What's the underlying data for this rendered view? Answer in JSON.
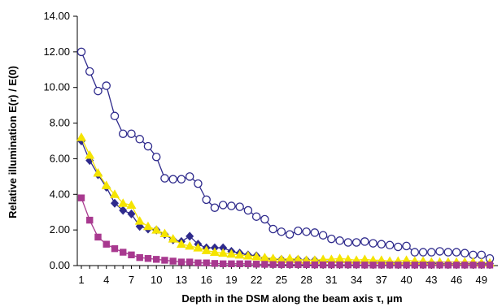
{
  "chart_data": {
    "type": "line",
    "title": "",
    "xlabel": "Depth in the DSM along the beam axis τ, µm",
    "ylabel": "Relative illumination  E(r) / E(0)",
    "ylim": [
      0,
      14
    ],
    "xlim": [
      1,
      50
    ],
    "y_ticks": [
      "0.00",
      "2.00",
      "4.00",
      "6.00",
      "8.00",
      "10.00",
      "12.00",
      "14.00"
    ],
    "x_ticks": [
      "1",
      "4",
      "7",
      "10",
      "13",
      "16",
      "19",
      "22",
      "25",
      "28",
      "31",
      "34",
      "37",
      "40",
      "43",
      "46",
      "49"
    ],
    "grid": false,
    "legend": "none",
    "x": [
      1,
      2,
      3,
      4,
      5,
      6,
      7,
      8,
      9,
      10,
      11,
      12,
      13,
      14,
      15,
      16,
      17,
      18,
      19,
      20,
      21,
      22,
      23,
      24,
      25,
      26,
      27,
      28,
      29,
      30,
      31,
      32,
      33,
      34,
      35,
      36,
      37,
      38,
      39,
      40,
      41,
      42,
      43,
      44,
      45,
      46,
      47,
      48,
      49,
      50
    ],
    "series": [
      {
        "color": "#2e2a8c",
        "marker": "open-circle",
        "values": [
          12.0,
          10.9,
          9.8,
          10.1,
          8.4,
          7.4,
          7.4,
          7.1,
          6.7,
          6.1,
          4.9,
          4.85,
          4.85,
          5.0,
          4.6,
          3.7,
          3.25,
          3.4,
          3.35,
          3.3,
          3.1,
          2.75,
          2.6,
          2.05,
          1.9,
          1.75,
          1.95,
          1.9,
          1.85,
          1.7,
          1.5,
          1.4,
          1.3,
          1.3,
          1.35,
          1.25,
          1.2,
          1.15,
          1.05,
          1.1,
          0.75,
          0.75,
          0.75,
          0.8,
          0.75,
          0.75,
          0.7,
          0.6,
          0.6,
          0.4
        ]
      },
      {
        "color": "#2e2a8c",
        "marker": "diamond",
        "values": [
          7.0,
          5.9,
          5.1,
          4.4,
          3.5,
          3.1,
          2.9,
          2.2,
          2.05,
          2.0,
          1.75,
          1.45,
          1.35,
          1.65,
          1.2,
          1.0,
          1.0,
          1.0,
          0.8,
          0.7,
          0.6,
          0.55,
          0.4,
          0.35,
          0.35,
          0.3,
          0.35,
          0.3,
          0.3,
          0.25,
          0.25,
          0.2,
          0.2,
          0.2,
          0.2,
          0.2,
          0.2,
          0.15,
          0.15,
          0.15,
          0.15,
          0.15,
          0.15,
          0.1,
          0.1,
          0.1,
          0.1,
          0.1,
          0.1,
          0.1
        ]
      },
      {
        "color": "#f5e400",
        "marker": "triangle",
        "values": [
          7.2,
          6.2,
          5.2,
          4.5,
          4.0,
          3.5,
          3.4,
          2.5,
          2.2,
          2.0,
          1.8,
          1.5,
          1.2,
          1.1,
          1.0,
          0.85,
          0.75,
          0.7,
          0.65,
          0.6,
          0.55,
          0.5,
          0.45,
          0.4,
          0.35,
          0.4,
          0.35,
          0.3,
          0.3,
          0.35,
          0.35,
          0.4,
          0.35,
          0.3,
          0.35,
          0.3,
          0.3,
          0.25,
          0.25,
          0.3,
          0.25,
          0.25,
          0.2,
          0.2,
          0.2,
          0.2,
          0.2,
          0.2,
          0.15,
          0.15
        ]
      },
      {
        "color": "#a8398f",
        "marker": "square",
        "values": [
          3.8,
          2.55,
          1.6,
          1.2,
          0.95,
          0.75,
          0.6,
          0.45,
          0.4,
          0.35,
          0.3,
          0.25,
          0.2,
          0.2,
          0.15,
          0.15,
          0.12,
          0.1,
          0.1,
          0.1,
          0.1,
          0.08,
          0.07,
          0.06,
          0.05,
          0.05,
          0.05,
          0.05,
          0.04,
          0.04,
          0.04,
          0.04,
          0.04,
          0.04,
          0.03,
          0.03,
          0.03,
          0.03,
          0.03,
          0.03,
          0.03,
          0.03,
          0.03,
          0.03,
          0.03,
          0.03,
          0.03,
          0.03,
          0.03,
          0.03
        ]
      }
    ]
  }
}
